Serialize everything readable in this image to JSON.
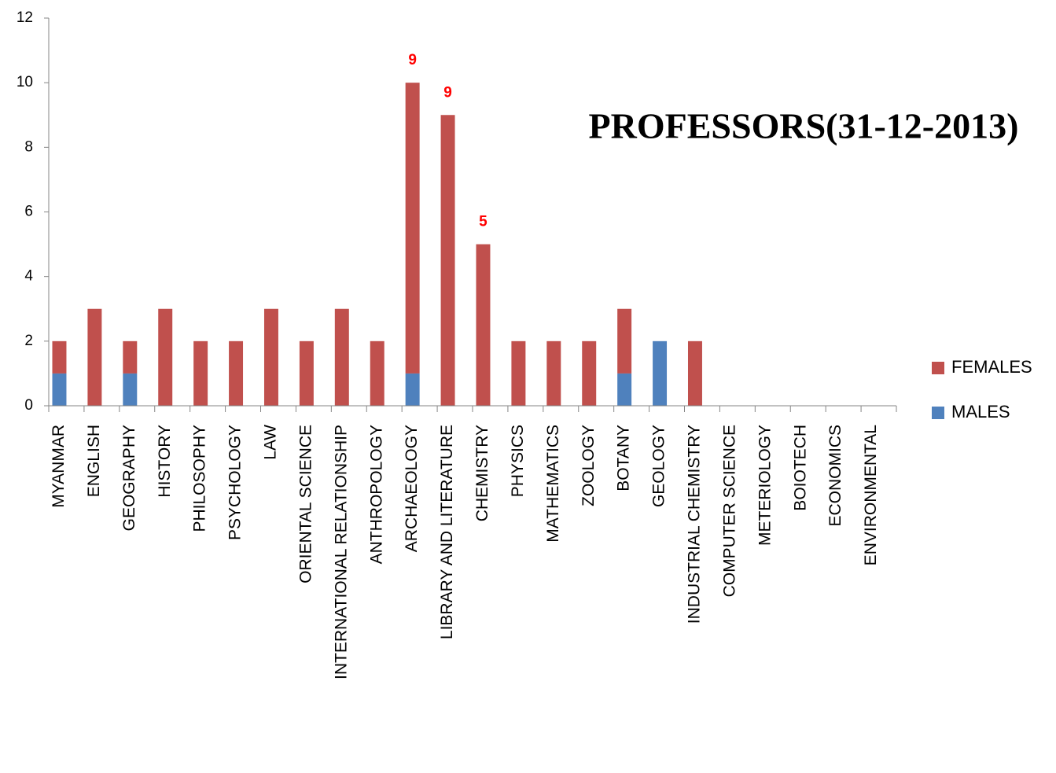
{
  "chart_data": {
    "type": "stacked_bar",
    "title": "PROFESSORS(31-12-2013)",
    "categories": [
      "MYANMAR",
      "ENGLISH",
      "GEOGRAPHY",
      "HISTORY",
      "PHILOSOPHY",
      "PSYCHOLOGY",
      "LAW",
      "ORIENTAL SCIENCE",
      "INTERNATIONAL RELATIONSHIP",
      "ANTHROPOLOGY",
      "ARCHAEOLOGY",
      "LIBRARY AND LITERATURE",
      "CHEMISTRY",
      "PHYSICS",
      "MATHEMATICS",
      "ZOOLOGY",
      "BOTANY",
      "GEOLOGY",
      "INDUSTRIAL CHEMISTRY",
      "COMPUTER SCIENCE",
      "METERIOLOGY",
      "BOIOTECH",
      "ECONOMICS",
      "ENVIRONMENTAL"
    ],
    "series": [
      {
        "name": "MALES",
        "color": "#4f81bd",
        "values": [
          1,
          0,
          1,
          0,
          0,
          0,
          0,
          0,
          0,
          0,
          1,
          0,
          0,
          0,
          0,
          0,
          1,
          2,
          0,
          0,
          0,
          0,
          0,
          0
        ]
      },
      {
        "name": "FEMALES",
        "color": "#c0504d",
        "values": [
          1,
          3,
          1,
          3,
          2,
          2,
          3,
          2,
          3,
          2,
          9,
          9,
          5,
          2,
          2,
          2,
          2,
          0,
          2,
          0,
          0,
          0,
          0,
          0
        ],
        "value_labels": [
          null,
          null,
          null,
          null,
          null,
          null,
          null,
          null,
          null,
          null,
          "9",
          "9",
          "5",
          null,
          null,
          null,
          null,
          null,
          null,
          null,
          null,
          null,
          null,
          null
        ],
        "label_color": "#ff0000"
      }
    ],
    "ylim": [
      0,
      12
    ],
    "yticks": [
      0,
      2,
      4,
      6,
      8,
      10,
      12
    ],
    "grid": false,
    "legend": "right"
  }
}
